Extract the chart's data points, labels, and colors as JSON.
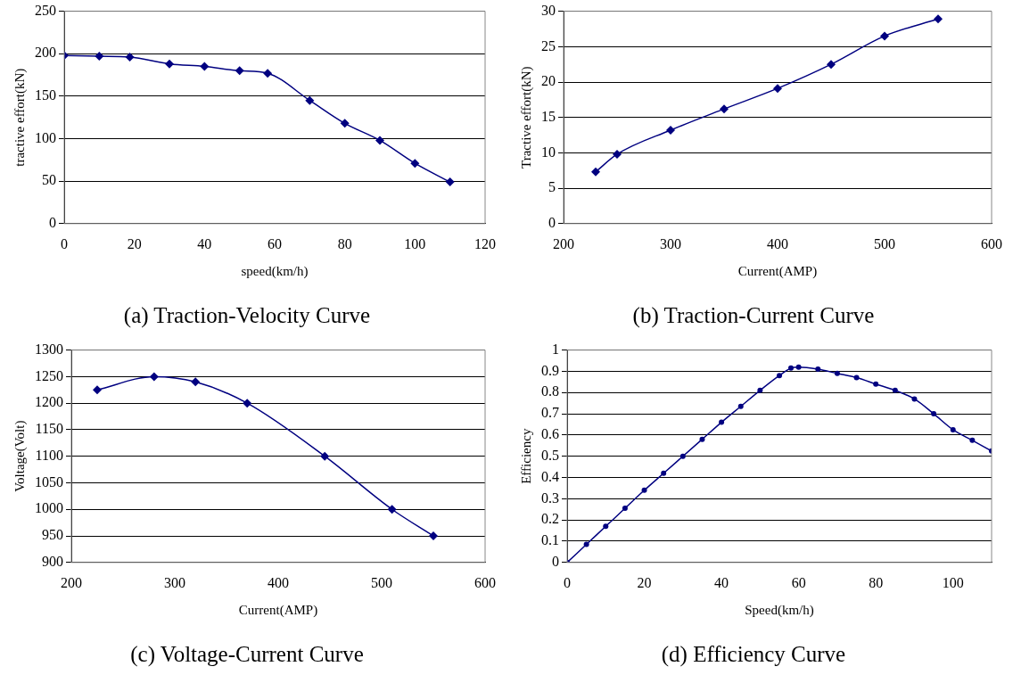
{
  "chart_data": [
    {
      "type": "line",
      "title": "(a) Traction-Velocity Curve",
      "xlabel": "speed(km/h)",
      "ylabel": "tractive effort(kN)",
      "x": [
        0,
        10,
        18.7,
        30,
        40,
        50,
        58,
        70,
        80,
        90,
        100,
        110
      ],
      "series": [
        {
          "color": "#000080",
          "values": [
            198,
            197,
            196,
            188,
            185,
            180,
            177,
            145,
            118,
            98,
            71,
            49
          ]
        }
      ],
      "xlim": [
        0,
        120
      ],
      "xticks": [
        0,
        20,
        40,
        60,
        80,
        100,
        120
      ],
      "ylim": [
        0,
        250
      ],
      "yticks": [
        0,
        50,
        100,
        150,
        200,
        250
      ],
      "grid": "y",
      "marker": "diamond",
      "legend": false
    },
    {
      "type": "line",
      "title": "(b) Traction-Current Curve",
      "xlabel": "Current(AMP)",
      "ylabel": "Tractive effort(kN)",
      "x": [
        230,
        250,
        300,
        350,
        400,
        450,
        500,
        550
      ],
      "series": [
        {
          "color": "#000080",
          "values": [
            7.3,
            9.8,
            13.2,
            16.2,
            19.1,
            22.5,
            26.5,
            28.9
          ]
        }
      ],
      "xlim": [
        200,
        600
      ],
      "xticks": [
        200,
        300,
        400,
        500,
        600
      ],
      "ylim": [
        0,
        30
      ],
      "yticks": [
        0,
        5,
        10,
        15,
        20,
        25,
        30
      ],
      "grid": "y",
      "marker": "diamond",
      "legend": false
    },
    {
      "type": "line",
      "title": "(c) Voltage-Current Curve",
      "xlabel": "Current(AMP)",
      "ylabel": "Voltage(Volt)",
      "x": [
        225,
        280,
        320,
        370,
        445,
        510,
        550
      ],
      "series": [
        {
          "color": "#000080",
          "values": [
            1225,
            1250,
            1240,
            1200,
            1100,
            1000,
            950
          ]
        }
      ],
      "xlim": [
        200,
        600
      ],
      "xticks": [
        200,
        300,
        400,
        500,
        600
      ],
      "ylim": [
        900,
        1300
      ],
      "yticks": [
        900,
        950,
        1000,
        1050,
        1100,
        1150,
        1200,
        1250,
        1300
      ],
      "grid": "y",
      "marker": "diamond",
      "legend": false
    },
    {
      "type": "line",
      "title": "(d) Efficiency Curve",
      "xlabel": "Speed(km/h)",
      "ylabel": "Efficiency",
      "x": [
        0,
        5,
        10,
        15,
        20,
        25,
        30,
        35,
        40,
        45,
        50,
        55,
        58,
        60,
        65,
        70,
        75,
        80,
        85,
        90,
        95,
        100,
        105,
        110
      ],
      "series": [
        {
          "color": "#000080",
          "values": [
            0,
            0.085,
            0.17,
            0.255,
            0.34,
            0.42,
            0.5,
            0.58,
            0.66,
            0.735,
            0.81,
            0.88,
            0.915,
            0.92,
            0.91,
            0.89,
            0.87,
            0.84,
            0.81,
            0.77,
            0.7,
            0.625,
            0.575,
            0.525
          ]
        }
      ],
      "xlim": [
        0,
        110
      ],
      "xticks": [
        0,
        20,
        40,
        60,
        80,
        100
      ],
      "ylim": [
        0,
        1
      ],
      "yticks": [
        0,
        0.1,
        0.2,
        0.3,
        0.4,
        0.5,
        0.6,
        0.7,
        0.8,
        0.9,
        1
      ],
      "grid": "y",
      "marker": "circle",
      "legend": false
    }
  ]
}
